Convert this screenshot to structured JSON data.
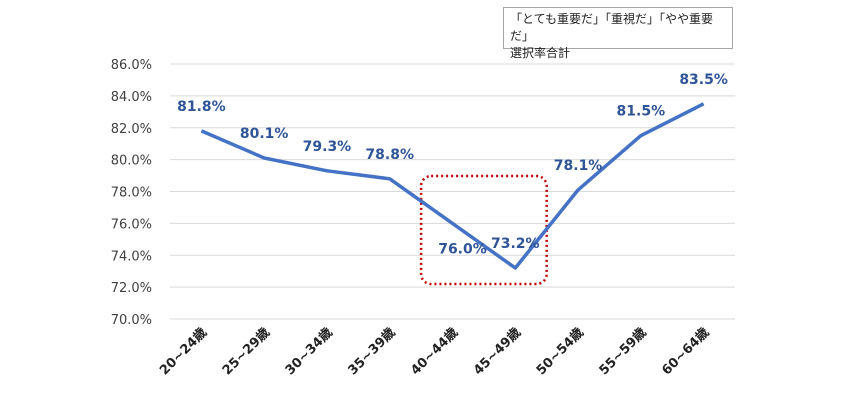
{
  "chart_data": {
    "type": "line",
    "categories": [
      "20~24歳",
      "25~29歳",
      "30~34歳",
      "35~39歳",
      "40~44歳",
      "45~49歳",
      "50~54歳",
      "55~59歳",
      "60~64歳"
    ],
    "series": [
      {
        "values": [
          81.8,
          80.1,
          79.3,
          78.8,
          76.0,
          73.2,
          78.1,
          81.5,
          83.5
        ]
      }
    ],
    "data_labels": [
      "81.8%",
      "80.1%",
      "79.3%",
      "78.8%",
      "76.0%",
      "73.2%",
      "78.1%",
      "81.5%",
      "83.5%"
    ],
    "ylim": [
      70,
      86
    ],
    "yticks": [
      70,
      72,
      74,
      76,
      78,
      80,
      82,
      84,
      86
    ],
    "ytick_labels": [
      "70.0%",
      "72.0%",
      "74.0%",
      "76.0%",
      "78.0%",
      "80.0%",
      "82.0%",
      "84.0%",
      "86.0%"
    ],
    "grid": true,
    "legend_position": "top-right",
    "annotation_lines": [
      "「とても重要だ」「重視だ」「やや重要だ」",
      "選択率合計"
    ],
    "highlight_categories": [
      "40~44歳",
      "45~49歳"
    ],
    "colors": {
      "line": "#4472c4",
      "label": "#2f5597",
      "grid": "#d9d9d9",
      "highlight": "#c00000"
    }
  }
}
